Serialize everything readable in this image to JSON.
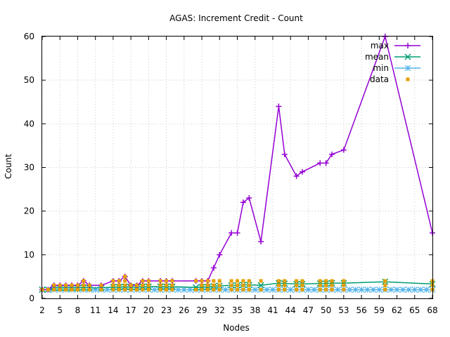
{
  "chart_data": {
    "type": "line",
    "title": "AGAS: Increment Credit - Count",
    "xlabel": "Nodes",
    "ylabel": "Count",
    "xlim": [
      2,
      68
    ],
    "ylim": [
      0,
      60
    ],
    "x_ticks": [
      2,
      5,
      8,
      11,
      14,
      17,
      20,
      23,
      26,
      29,
      32,
      35,
      38,
      41,
      44,
      47,
      50,
      53,
      56,
      59,
      62,
      65,
      68
    ],
    "y_ticks": [
      0,
      10,
      20,
      30,
      40,
      50,
      60
    ],
    "grid": true,
    "legend_position": "top-right",
    "series": [
      {
        "name": "max",
        "color": "#9400d3",
        "marker": "plus",
        "x": [
          2,
          3,
          4,
          5,
          6,
          7,
          8,
          9,
          10,
          12,
          14,
          15,
          16,
          17,
          18,
          19,
          20,
          22,
          23,
          24,
          28,
          29,
          30,
          31,
          32,
          34,
          35,
          36,
          37,
          39,
          42,
          43,
          45,
          46,
          49,
          50,
          51,
          53,
          60,
          68
        ],
        "values": [
          2,
          2,
          3,
          3,
          3,
          3,
          3,
          4,
          3,
          3,
          4,
          4,
          5,
          3,
          3,
          4,
          4,
          4,
          4,
          4,
          4,
          4,
          4,
          7,
          10,
          15,
          15,
          22,
          23,
          13,
          44,
          33,
          28,
          29,
          31,
          31,
          33,
          34,
          60,
          15
        ]
      },
      {
        "name": "mean",
        "color": "#009e73",
        "marker": "x",
        "x": [
          2,
          3,
          4,
          5,
          6,
          7,
          8,
          9,
          10,
          12,
          14,
          15,
          16,
          17,
          18,
          19,
          20,
          22,
          23,
          24,
          28,
          29,
          30,
          31,
          32,
          34,
          35,
          36,
          37,
          39,
          42,
          43,
          45,
          46,
          49,
          50,
          51,
          53,
          60,
          68
        ],
        "values": [
          2,
          2,
          2.4,
          2.4,
          2.4,
          2.4,
          2.4,
          2.5,
          2.4,
          2.4,
          2.6,
          2.6,
          2.7,
          2.6,
          2.6,
          2.7,
          2.7,
          2.7,
          2.7,
          2.7,
          2.5,
          2.6,
          2.6,
          2.8,
          2.9,
          3.0,
          3.0,
          3.1,
          3.1,
          3.0,
          3.5,
          3.4,
          3.3,
          3.3,
          3.4,
          3.4,
          3.5,
          3.5,
          3.8,
          3.3
        ]
      },
      {
        "name": "min",
        "color": "#56b4e9",
        "marker": "star",
        "x": [
          2,
          68
        ],
        "values": [
          2,
          2
        ]
      },
      {
        "name": "data",
        "color": "#e69f00",
        "marker": "dot",
        "x": [
          2,
          3,
          4,
          4,
          5,
          5,
          6,
          6,
          7,
          7,
          8,
          8,
          9,
          9,
          9,
          10,
          10,
          12,
          12,
          14,
          14,
          14,
          15,
          15,
          15,
          16,
          16,
          16,
          16,
          17,
          17,
          17,
          18,
          18,
          18,
          19,
          19,
          19,
          20,
          20,
          20,
          22,
          22,
          22,
          23,
          23,
          23,
          24,
          24,
          24,
          28,
          28,
          29,
          29,
          29,
          30,
          30,
          30,
          31,
          31,
          31,
          32,
          32,
          32,
          34,
          34,
          34,
          35,
          35,
          35,
          36,
          36,
          36,
          37,
          37,
          37,
          39,
          39,
          42,
          42,
          42,
          43,
          43,
          43,
          45,
          45,
          45,
          46,
          46,
          46,
          49,
          49,
          49,
          50,
          50,
          50,
          51,
          51,
          51,
          53,
          53,
          53,
          60,
          60,
          60,
          68,
          68,
          68
        ],
        "values": [
          2,
          2,
          2,
          3,
          2,
          3,
          2,
          3,
          2,
          3,
          2,
          3,
          2,
          3,
          4,
          2,
          3,
          2,
          3,
          2,
          3,
          4,
          2,
          3,
          4,
          2,
          3,
          4,
          5,
          2,
          3,
          3,
          2,
          3,
          3,
          2,
          3,
          4,
          2,
          3,
          4,
          2,
          3,
          4,
          2,
          3,
          4,
          2,
          3,
          4,
          2,
          4,
          2,
          3,
          4,
          2,
          3,
          4,
          2,
          3,
          4,
          2,
          3,
          4,
          2,
          3,
          4,
          2,
          3,
          4,
          2,
          3,
          4,
          2,
          3,
          4,
          2,
          4,
          2,
          3,
          4,
          2,
          3,
          4,
          2,
          3,
          4,
          2,
          3,
          4,
          2,
          3,
          4,
          2,
          3,
          4,
          2,
          3,
          4,
          2,
          3,
          4,
          2,
          3,
          4,
          2,
          3,
          4
        ]
      }
    ]
  }
}
